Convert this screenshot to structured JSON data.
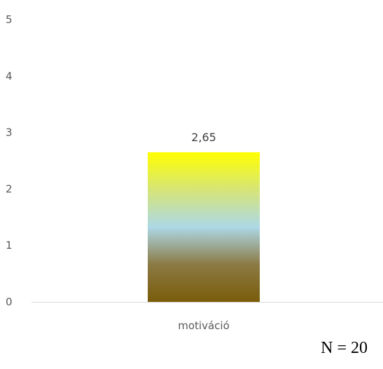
{
  "chart_data": {
    "type": "bar",
    "categories": [
      "motiváció"
    ],
    "values": [
      2.65
    ],
    "value_labels": [
      "2,65"
    ],
    "yticks": [
      "0",
      "1",
      "2",
      "3",
      "4",
      "5"
    ],
    "ylim": [
      0,
      5
    ],
    "grid": false,
    "legend": "none",
    "bar_gradient": [
      "#FFFF00",
      "#D6E577",
      "#ADD8E6",
      "#8B7A44",
      "#7A5C0A"
    ],
    "axis_color": "#D9D9D9",
    "annotation": "N = 20"
  }
}
